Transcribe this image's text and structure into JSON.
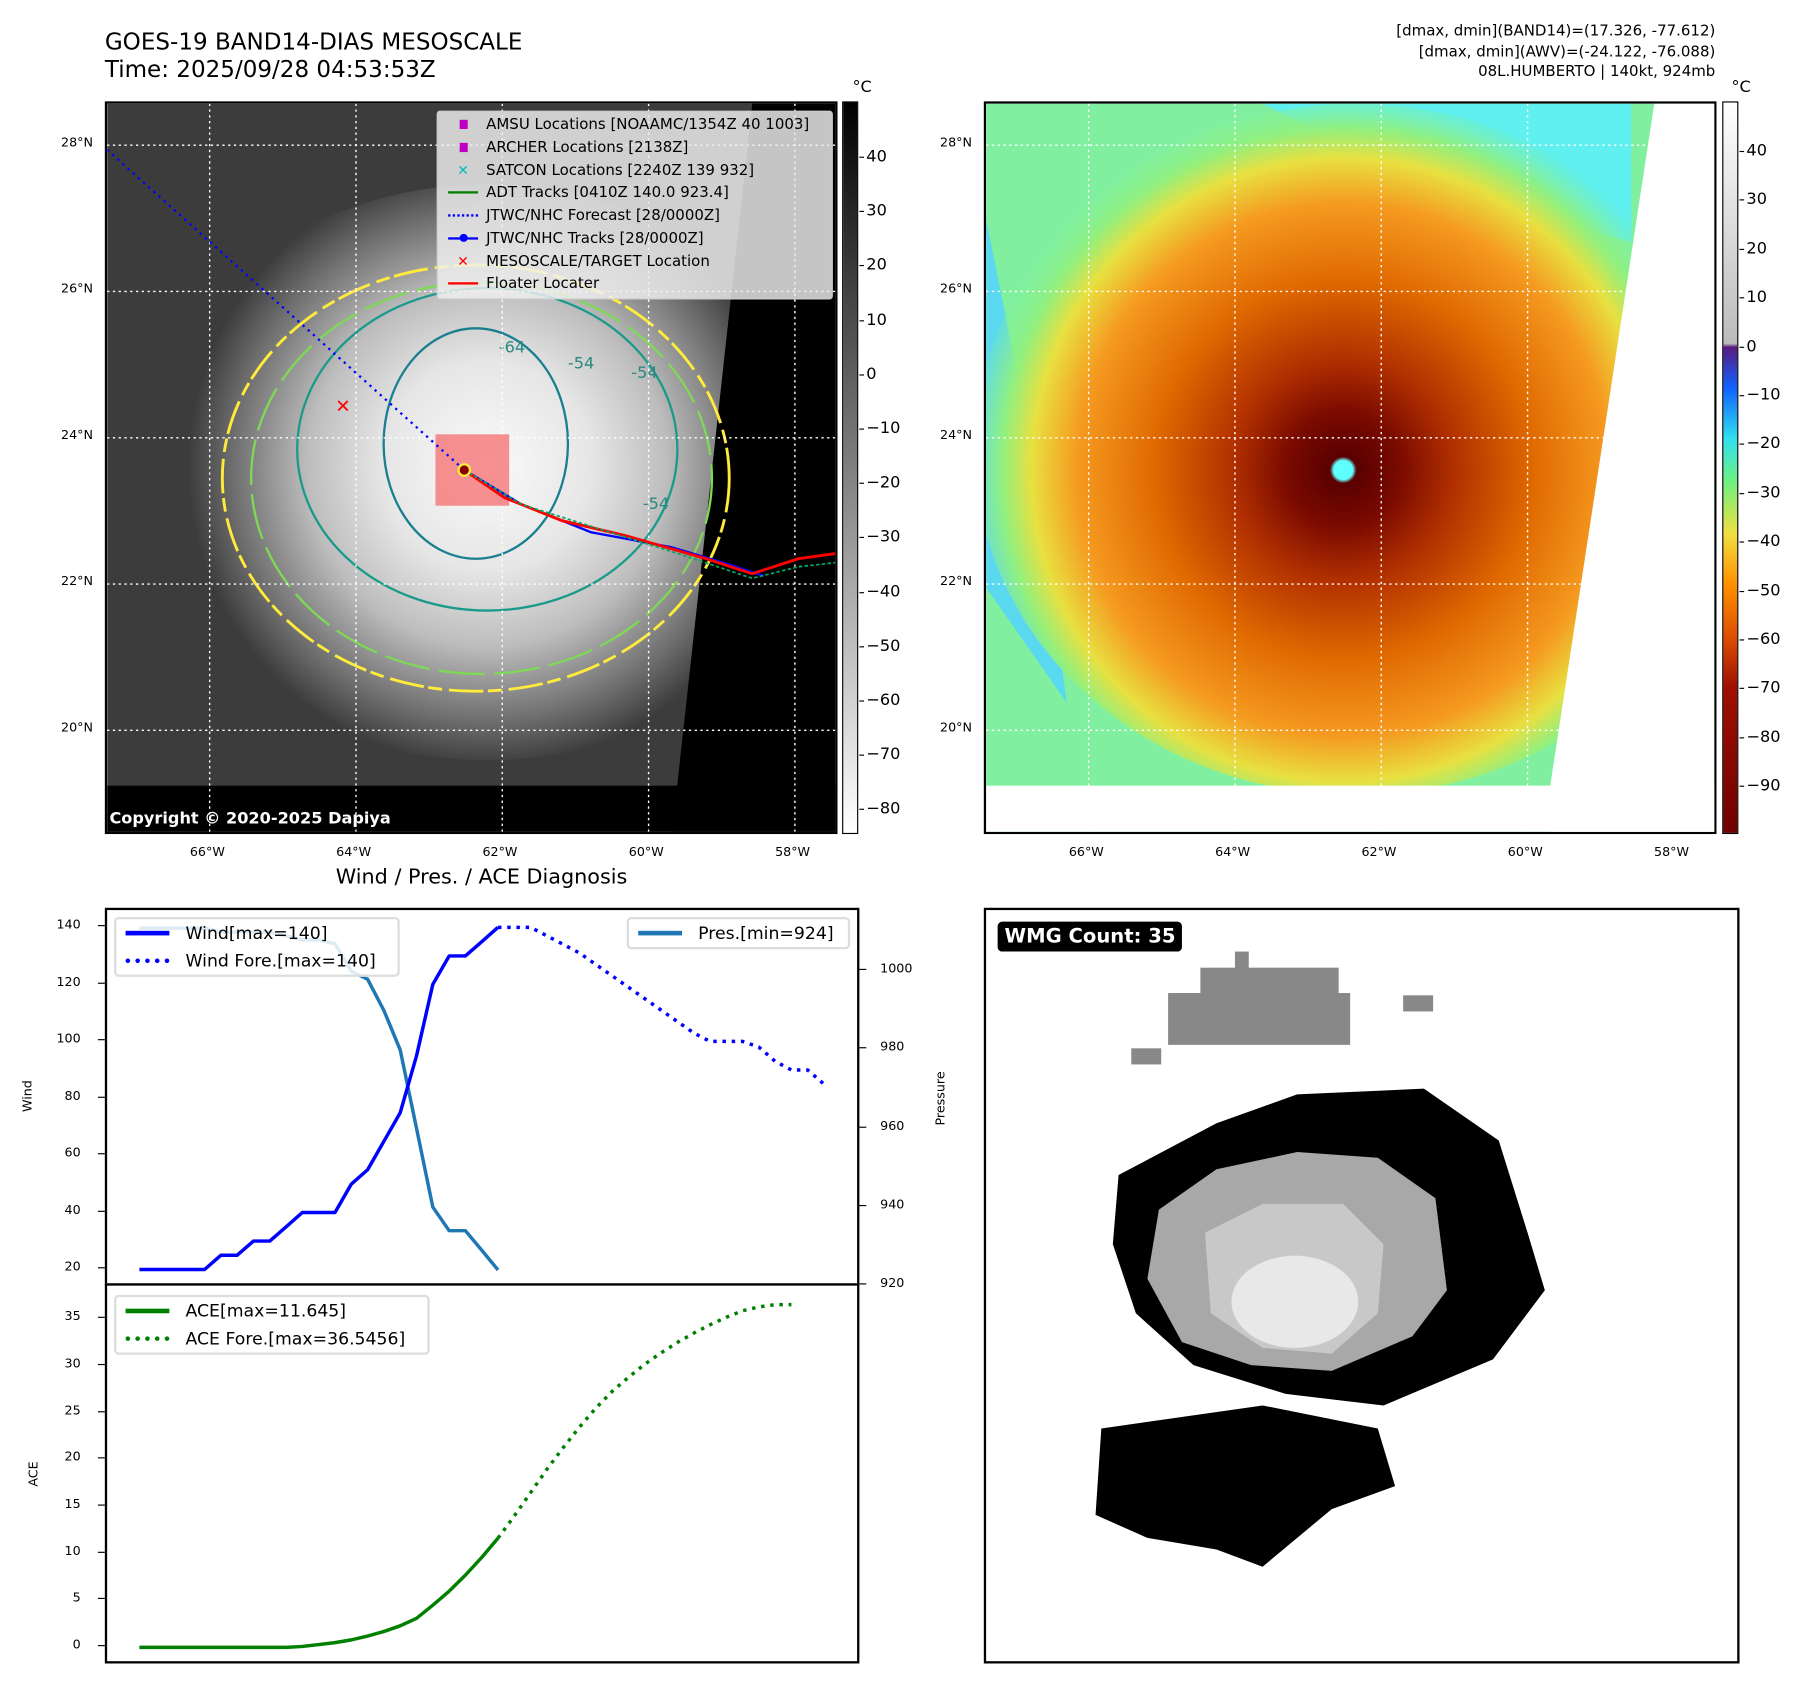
{
  "header": {
    "title": "GOES-19 BAND14-DIAS MESOSCALE",
    "time": "Time: 2025/09/28 04:53:53Z",
    "stats_band14": "[dmax, dmin](BAND14)=(17.326, -77.612)",
    "stats_awv": "[dmax, dmin](AWV)=(-24.122, -76.088)",
    "storm_info": "08L.HUMBERTO | 140kt, 924mb"
  },
  "left_map": {
    "unit": "°C",
    "colorbar_ticks": [
      "40",
      "30",
      "20",
      "10",
      "0",
      "−10",
      "−20",
      "−30",
      "−40",
      "−50",
      "−60",
      "−70",
      "−80"
    ],
    "lat_labels": [
      "28°N",
      "26°N",
      "24°N",
      "22°N",
      "20°N"
    ],
    "lon_labels": [
      "66°W",
      "64°W",
      "62°W",
      "60°W",
      "58°W"
    ],
    "copyright": "Copyright © 2020-2025 Dapiya",
    "contour_labels": [
      "-64",
      "-54",
      "-54",
      "-54",
      "-54",
      "-54"
    ],
    "legend": [
      {
        "label": "AMSU Locations [NOAAMC/1354Z 40 1003]",
        "color": "#c000c0",
        "icon": "square-marker"
      },
      {
        "label": "ARCHER Locations [2138Z]",
        "color": "#c000c0",
        "icon": "square-marker"
      },
      {
        "label": "SATCON Locations [2240Z 139 932]",
        "color": "#00bfbf",
        "icon": "x-marker"
      },
      {
        "label": "ADT Tracks [0410Z 140.0 923.4]",
        "color": "#008000",
        "icon": "solid-line"
      },
      {
        "label": "JTWC/NHC Forecast [28/0000Z]",
        "color": "#0000ff",
        "icon": "dotted-line"
      },
      {
        "label": "JTWC/NHC Tracks [28/0000Z]",
        "color": "#0000ff",
        "icon": "line-dot"
      },
      {
        "label": "MESOSCALE/TARGET Location",
        "color": "#ff0000",
        "icon": "x-marker"
      },
      {
        "label": "Floater Locater",
        "color": "#ff0000",
        "icon": "solid-line"
      }
    ]
  },
  "right_map": {
    "unit": "°C",
    "colorbar_ticks": [
      "40",
      "30",
      "20",
      "10",
      "0",
      "−10",
      "−20",
      "−30",
      "−40",
      "−50",
      "−60",
      "−70",
      "−80",
      "−90"
    ],
    "lat_labels": [
      "28°N",
      "26°N",
      "24°N",
      "22°N",
      "20°N"
    ],
    "lon_labels": [
      "66°W",
      "64°W",
      "62°W",
      "60°W",
      "58°W"
    ]
  },
  "wmg": {
    "badge": "WMG Count: 35"
  },
  "chart_data": [
    {
      "type": "line",
      "title": "Wind / Pres. / ACE Diagnosis",
      "ylabel": "Wind",
      "y2label": "Pressure",
      "ylim": [
        17,
        143
      ],
      "y2lim": [
        920,
        1012
      ],
      "yticks": [
        20,
        40,
        60,
        80,
        100,
        120,
        140
      ],
      "y2ticks": [
        920,
        940,
        960,
        980,
        1000
      ],
      "x_step": "index",
      "series": [
        {
          "name": "Wind[max=140]",
          "color": "#0000ff",
          "style": "solid",
          "x_start": 0,
          "values": [
            20,
            20,
            20,
            20,
            20,
            25,
            25,
            30,
            30,
            35,
            40,
            40,
            40,
            50,
            55,
            65,
            75,
            95,
            120,
            130,
            130,
            135,
            140
          ]
        },
        {
          "name": "Wind Fore.[max=140]",
          "color": "#0000ff",
          "style": "dotted",
          "x_start": 22,
          "values": [
            140,
            140,
            140,
            137,
            134,
            131,
            127,
            123,
            119,
            115,
            111,
            107,
            103,
            100,
            100,
            100,
            98,
            93,
            90,
            90,
            85
          ]
        },
        {
          "name": "Pres.[min=924]",
          "color": "#1f77b4",
          "style": "solid",
          "axis": "right",
          "x_start": 0,
          "values": [
            1011,
            1011,
            1011,
            1011,
            1011,
            1010,
            1010,
            1010,
            1010,
            1009,
            1008,
            1008,
            1007,
            1000,
            998,
            990,
            980,
            960,
            940,
            934,
            934,
            929,
            924
          ]
        }
      ]
    },
    {
      "type": "line",
      "ylabel": "ACE",
      "ylim": [
        -1.8,
        38.5
      ],
      "yticks": [
        0,
        5,
        10,
        15,
        20,
        25,
        30,
        35
      ],
      "series": [
        {
          "name": "ACE[max=11.645]",
          "color": "#008000",
          "style": "solid",
          "x_start": 0,
          "values": [
            0,
            0,
            0,
            0,
            0,
            0,
            0,
            0,
            0,
            0,
            0.1,
            0.3,
            0.5,
            0.8,
            1.2,
            1.7,
            2.3,
            3.1,
            4.5,
            6.0,
            7.7,
            9.6,
            11.645
          ]
        },
        {
          "name": "ACE Fore.[max=36.5456]",
          "color": "#008000",
          "style": "dotted",
          "x_start": 22,
          "values": [
            11.645,
            14,
            16.5,
            19,
            21.3,
            23.5,
            25.5,
            27.3,
            28.8,
            30.2,
            31.4,
            32.5,
            33.5,
            34.4,
            35.2,
            35.9,
            36.3,
            36.5456,
            36.5456
          ]
        }
      ]
    }
  ]
}
